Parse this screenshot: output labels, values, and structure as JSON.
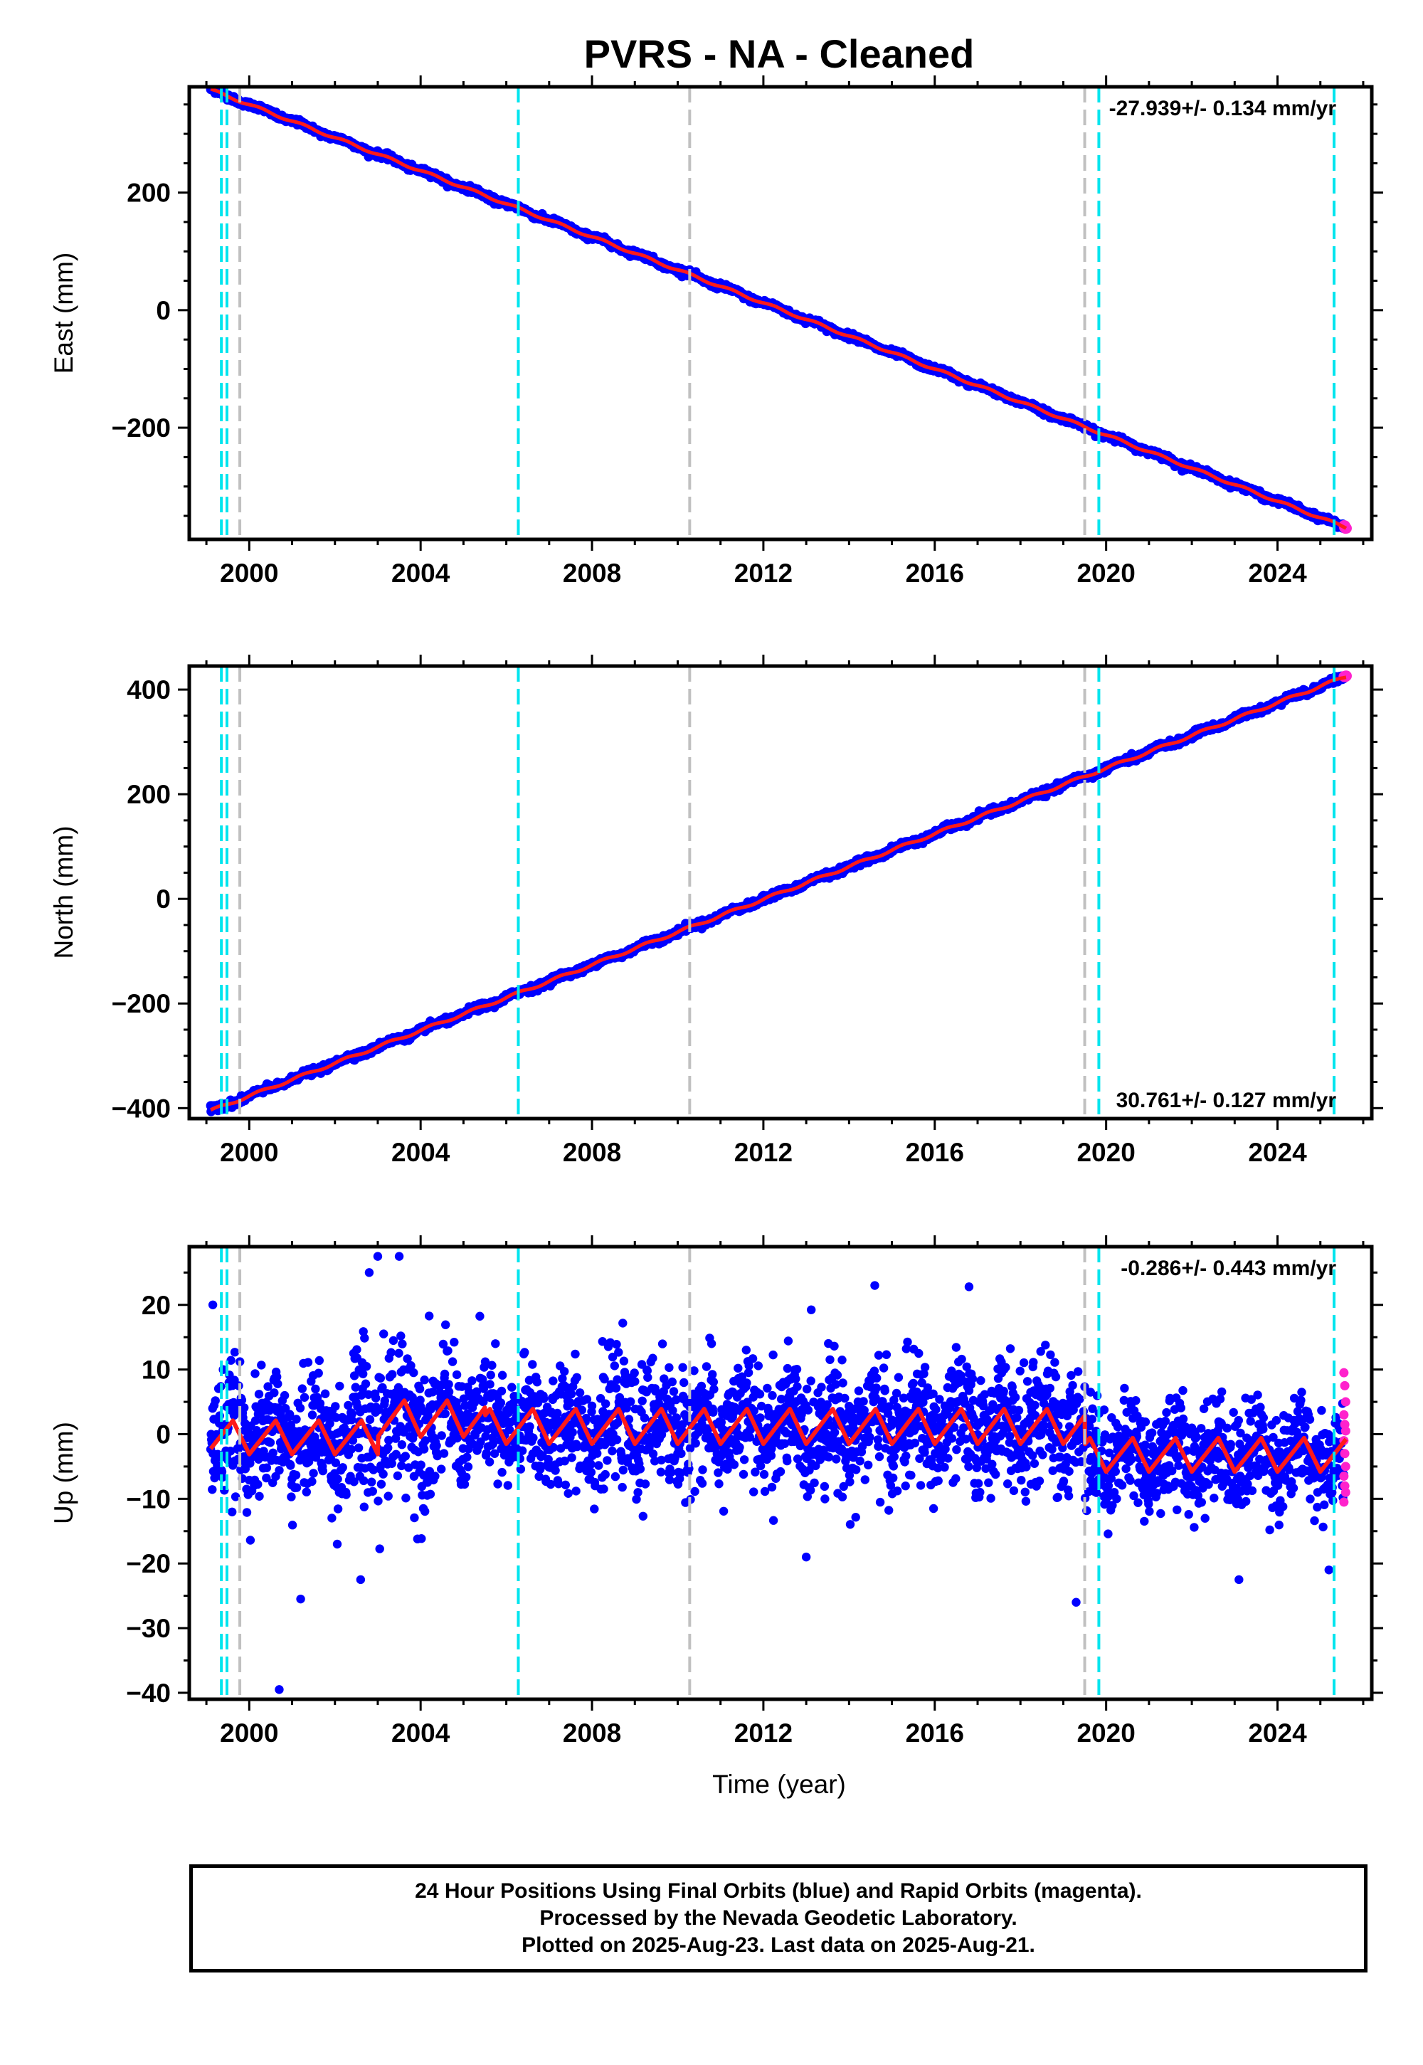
{
  "figure": {
    "title": "PVRS  - NA - Cleaned",
    "xlabel": "Time (year)"
  },
  "colors": {
    "final_orbits": "#0000ff",
    "rapid_orbits": "#ff22cc",
    "model": "#ff1a1a",
    "equipment_change": "#00e5ee",
    "other_offset": "#c0c0c0",
    "frame": "#000000"
  },
  "chart_data": [
    {
      "type": "scatter",
      "panel": "east",
      "ylabel": "East (mm)",
      "rate_label": "-27.939+/- 0.134 mm/yr",
      "rate_position": "top-right",
      "xlim": [
        1998.6,
        2026.2
      ],
      "ylim": [
        -390,
        380
      ],
      "x_ticks": [
        2000,
        2004,
        2008,
        2012,
        2016,
        2020,
        2024
      ],
      "y_ticks": [
        -200,
        0,
        200
      ],
      "trend": {
        "start_year": 1999.1,
        "start_value": 375,
        "end_year": 2025.6,
        "end_value": -370,
        "rate_mm_per_yr": -27.939
      },
      "seasonal_amplitude": 2.0,
      "scatter_noise": 2.5,
      "rapid_from_year": 2025.55,
      "cyan_dashed_years": [
        1999.35,
        1999.48,
        2006.28,
        2019.83,
        2025.32
      ],
      "gray_dashed_years": [
        1999.78,
        2010.28,
        2019.5
      ],
      "grid": false
    },
    {
      "type": "scatter",
      "panel": "north",
      "ylabel": "North (mm)",
      "rate_label": "30.761+/- 0.127 mm/yr",
      "rate_position": "bottom-right",
      "xlim": [
        1998.6,
        2026.2
      ],
      "ylim": [
        -420,
        445
      ],
      "x_ticks": [
        2000,
        2004,
        2008,
        2012,
        2016,
        2020,
        2024
      ],
      "y_ticks": [
        -400,
        -200,
        0,
        200,
        400
      ],
      "trend": {
        "start_year": 1999.1,
        "start_value": -405,
        "end_year": 2025.6,
        "end_value": 425,
        "rate_mm_per_yr": 30.761
      },
      "seasonal_amplitude": 2.5,
      "scatter_noise": 3.0,
      "rapid_from_year": 2025.55,
      "cyan_dashed_years": [
        1999.35,
        1999.48,
        2006.28,
        2019.83,
        2025.32
      ],
      "gray_dashed_years": [
        1999.78,
        2010.28,
        2019.5
      ],
      "grid": false
    },
    {
      "type": "scatter",
      "panel": "up",
      "ylabel": "Up (mm)",
      "rate_label": "-0.286+/- 0.443 mm/yr",
      "rate_position": "top-right",
      "xlim": [
        1998.6,
        2026.2
      ],
      "ylim": [
        -41,
        29
      ],
      "x_ticks": [
        2000,
        2004,
        2008,
        2012,
        2016,
        2020,
        2024
      ],
      "y_ticks": [
        -40,
        -30,
        -20,
        -10,
        0,
        10,
        20
      ],
      "trend": {
        "start_year": 1999.1,
        "start_value": 0,
        "end_year": 2025.6,
        "end_value": 0,
        "rate_mm_per_yr": -0.286
      },
      "model_segments": [
        {
          "from": 1999.1,
          "to": 2003.0,
          "mean": -0.5,
          "amplitude": 2.6
        },
        {
          "from": 2003.0,
          "to": 2005.5,
          "mean": 2.4,
          "amplitude": 2.8
        },
        {
          "from": 2005.5,
          "to": 2019.5,
          "mean": 1.2,
          "amplitude": 2.7
        },
        {
          "from": 2019.5,
          "to": 2025.6,
          "mean": -3.2,
          "amplitude": 2.6
        }
      ],
      "scatter_noise": 4.6,
      "rapid_from_year": 2025.55,
      "rapid_values": [
        9.5,
        7.5,
        5.0,
        3.0,
        1.5,
        0.5,
        -1.0,
        -3.0,
        -5.0,
        -6.5,
        -8.0,
        -9.0,
        -10.5
      ],
      "outliers": [
        [
          1999.15,
          20
        ],
        [
          2002.8,
          25
        ],
        [
          2003.0,
          27.5
        ],
        [
          2003.5,
          27.5
        ],
        [
          2000.7,
          -39.5
        ],
        [
          2001.2,
          -25.5
        ],
        [
          2002.6,
          -22.5
        ],
        [
          2019.3,
          -26
        ],
        [
          2023.1,
          -22.5
        ],
        [
          2014.6,
          23
        ],
        [
          2016.8,
          22.8
        ],
        [
          2013.0,
          -19
        ],
        [
          2025.2,
          -21
        ]
      ],
      "cyan_dashed_years": [
        1999.35,
        1999.48,
        2006.28,
        2019.83,
        2025.32
      ],
      "gray_dashed_years": [
        1999.78,
        2010.28,
        2019.5
      ],
      "grid": false
    }
  ],
  "footer": {
    "lines": [
      "24 Hour Positions Using Final Orbits (blue) and Rapid Orbits (magenta).",
      "Processed by the Nevada Geodetic Laboratory.",
      "Plotted on 2025-Aug-23. Last data on 2025-Aug-21."
    ]
  }
}
